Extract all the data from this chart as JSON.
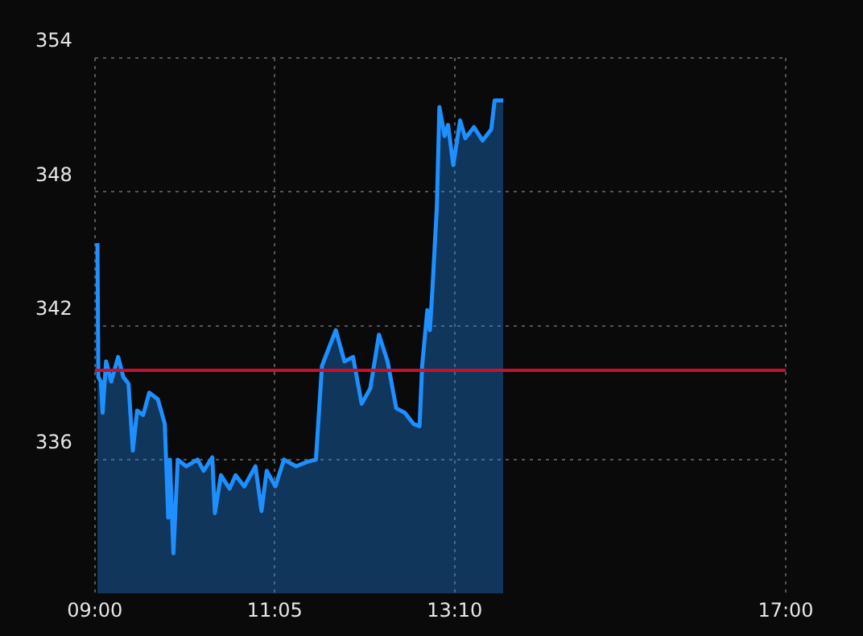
{
  "chart_data": {
    "type": "area",
    "x": [
      9.03,
      9.04,
      9.07,
      9.09,
      9.13,
      9.19,
      9.27,
      9.33,
      9.39,
      9.44,
      9.49,
      9.56,
      9.63,
      9.73,
      9.81,
      9.85,
      9.87,
      9.91,
      9.96,
      10.06,
      10.19,
      10.26,
      10.36,
      10.39,
      10.46,
      10.56,
      10.63,
      10.73,
      10.86,
      10.93,
      10.99,
      11.09,
      11.19,
      11.33,
      11.46,
      11.56,
      11.63,
      11.79,
      11.89,
      11.99,
      12.09,
      12.19,
      12.29,
      12.39,
      12.49,
      12.59,
      12.69,
      12.76,
      12.79,
      12.85,
      12.88,
      12.91,
      12.96,
      12.99,
      13.05,
      13.09,
      13.15,
      13.23,
      13.29,
      13.39,
      13.49,
      13.59,
      13.63,
      13.73
    ],
    "series": [
      {
        "color": "#1e8fff",
        "values": [
          345.7,
          339.7,
          339.5,
          338.1,
          340.4,
          339.5,
          340.6,
          339.7,
          339.4,
          336.4,
          338.2,
          338.0,
          339.0,
          338.7,
          337.6,
          333.4,
          336.0,
          331.8,
          336.0,
          335.7,
          336.0,
          335.5,
          336.1,
          333.6,
          335.3,
          334.7,
          335.3,
          334.8,
          335.7,
          333.7,
          335.5,
          334.8,
          336.0,
          335.7,
          335.9,
          336.0,
          340.2,
          341.8,
          340.4,
          340.6,
          338.5,
          339.2,
          341.6,
          340.4,
          338.3,
          338.1,
          337.6,
          337.5,
          340.2,
          342.7,
          341.8,
          343.7,
          347.3,
          351.8,
          350.5,
          351.0,
          349.2,
          351.2,
          350.4,
          350.9,
          350.3,
          350.8,
          352.1,
          352.1
        ]
      }
    ],
    "xlim": [
      9,
      17
    ],
    "xticks": [
      {
        "value": 9,
        "label": "09:00"
      },
      {
        "value": 11.0833,
        "label": "11:05"
      },
      {
        "value": 13.1667,
        "label": "13:10"
      },
      {
        "value": 17,
        "label": "17:00"
      }
    ],
    "ylim": [
      330,
      354
    ],
    "yticks": [
      336,
      342,
      348,
      354
    ],
    "ref_lines": [
      {
        "axis": "y",
        "value": 340,
        "color": "#c8102e"
      }
    ],
    "grid": true,
    "legend": false
  }
}
